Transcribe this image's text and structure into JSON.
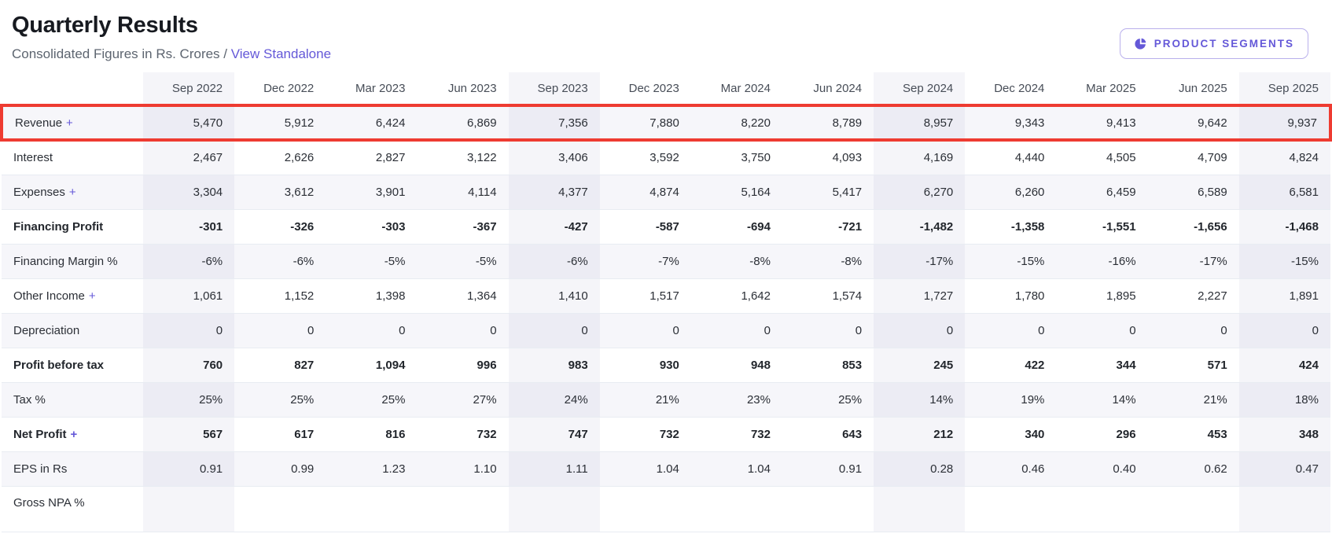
{
  "header": {
    "title": "Quarterly Results",
    "subtitle_prefix": "Consolidated Figures in Rs. Crores /",
    "standalone_link": "View Standalone",
    "segments_button": "PRODUCT SEGMENTS",
    "segments_icon": "pie-chart-icon"
  },
  "colors": {
    "accent": "#6458d8",
    "row_highlight_border": "#ee3b31",
    "stripe": "#f6f6fa",
    "column_shade": "rgba(125,125,170,0.075)"
  },
  "table": {
    "columns": [
      "Sep 2022",
      "Dec 2022",
      "Mar 2023",
      "Jun 2023",
      "Sep 2023",
      "Dec 2023",
      "Mar 2024",
      "Jun 2024",
      "Sep 2024",
      "Dec 2024",
      "Mar 2025",
      "Jun 2025",
      "Sep 2025"
    ],
    "highlighted_columns": [
      0,
      4,
      8,
      12
    ],
    "rows": [
      {
        "label": "Revenue",
        "expandable": true,
        "bold": false,
        "highlighted": true,
        "values": [
          "5,470",
          "5,912",
          "6,424",
          "6,869",
          "7,356",
          "7,880",
          "8,220",
          "8,789",
          "8,957",
          "9,343",
          "9,413",
          "9,642",
          "9,937"
        ]
      },
      {
        "label": "Interest",
        "expandable": false,
        "bold": false,
        "highlighted": false,
        "values": [
          "2,467",
          "2,626",
          "2,827",
          "3,122",
          "3,406",
          "3,592",
          "3,750",
          "4,093",
          "4,169",
          "4,440",
          "4,505",
          "4,709",
          "4,824"
        ]
      },
      {
        "label": "Expenses",
        "expandable": true,
        "bold": false,
        "highlighted": false,
        "values": [
          "3,304",
          "3,612",
          "3,901",
          "4,114",
          "4,377",
          "4,874",
          "5,164",
          "5,417",
          "6,270",
          "6,260",
          "6,459",
          "6,589",
          "6,581"
        ]
      },
      {
        "label": "Financing Profit",
        "expandable": false,
        "bold": true,
        "highlighted": false,
        "values": [
          "-301",
          "-326",
          "-303",
          "-367",
          "-427",
          "-587",
          "-694",
          "-721",
          "-1,482",
          "-1,358",
          "-1,551",
          "-1,656",
          "-1,468"
        ]
      },
      {
        "label": "Financing Margin %",
        "expandable": false,
        "bold": false,
        "highlighted": false,
        "values": [
          "-6%",
          "-6%",
          "-5%",
          "-5%",
          "-6%",
          "-7%",
          "-8%",
          "-8%",
          "-17%",
          "-15%",
          "-16%",
          "-17%",
          "-15%"
        ]
      },
      {
        "label": "Other Income",
        "expandable": true,
        "bold": false,
        "highlighted": false,
        "values": [
          "1,061",
          "1,152",
          "1,398",
          "1,364",
          "1,410",
          "1,517",
          "1,642",
          "1,574",
          "1,727",
          "1,780",
          "1,895",
          "2,227",
          "1,891"
        ]
      },
      {
        "label": "Depreciation",
        "expandable": false,
        "bold": false,
        "highlighted": false,
        "values": [
          "0",
          "0",
          "0",
          "0",
          "0",
          "0",
          "0",
          "0",
          "0",
          "0",
          "0",
          "0",
          "0"
        ]
      },
      {
        "label": "Profit before tax",
        "expandable": false,
        "bold": true,
        "highlighted": false,
        "values": [
          "760",
          "827",
          "1,094",
          "996",
          "983",
          "930",
          "948",
          "853",
          "245",
          "422",
          "344",
          "571",
          "424"
        ]
      },
      {
        "label": "Tax %",
        "expandable": false,
        "bold": false,
        "highlighted": false,
        "values": [
          "25%",
          "25%",
          "25%",
          "27%",
          "24%",
          "21%",
          "23%",
          "25%",
          "14%",
          "19%",
          "14%",
          "21%",
          "18%"
        ]
      },
      {
        "label": "Net Profit",
        "expandable": true,
        "bold": true,
        "highlighted": false,
        "values": [
          "567",
          "617",
          "816",
          "732",
          "747",
          "732",
          "732",
          "643",
          "212",
          "340",
          "296",
          "453",
          "348"
        ]
      },
      {
        "label": "EPS in Rs",
        "expandable": false,
        "bold": false,
        "highlighted": false,
        "values": [
          "0.91",
          "0.99",
          "1.23",
          "1.10",
          "1.11",
          "1.04",
          "1.04",
          "0.91",
          "0.28",
          "0.46",
          "0.40",
          "0.62",
          "0.47"
        ]
      },
      {
        "label": "Gross NPA %",
        "expandable": false,
        "bold": false,
        "highlighted": false,
        "values": [
          "",
          "",
          "",
          "",
          "",
          "",
          "",
          "",
          "",
          "",
          "",
          "",
          ""
        ]
      }
    ]
  }
}
